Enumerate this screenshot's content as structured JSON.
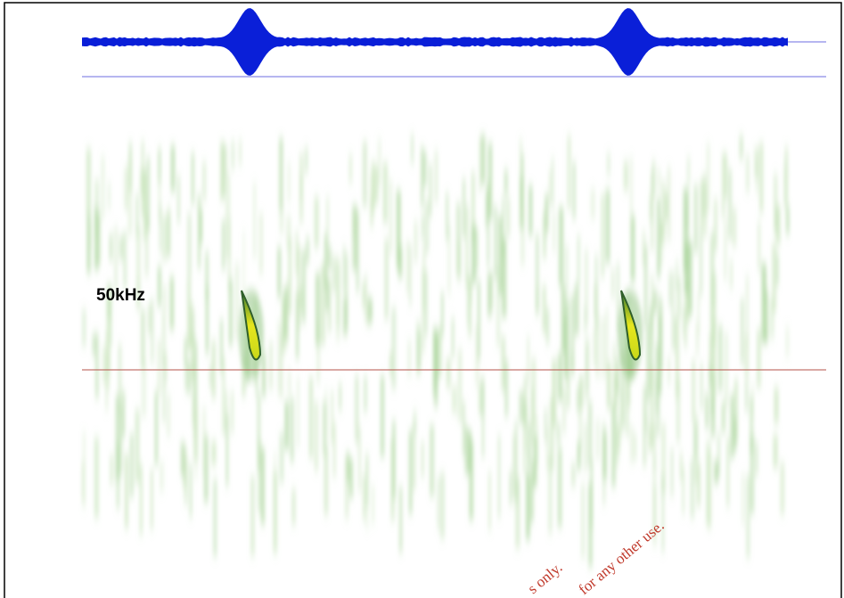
{
  "frequency_label": "50kHz",
  "watermark": [
    "s only.",
    "for any other use."
  ]
}
